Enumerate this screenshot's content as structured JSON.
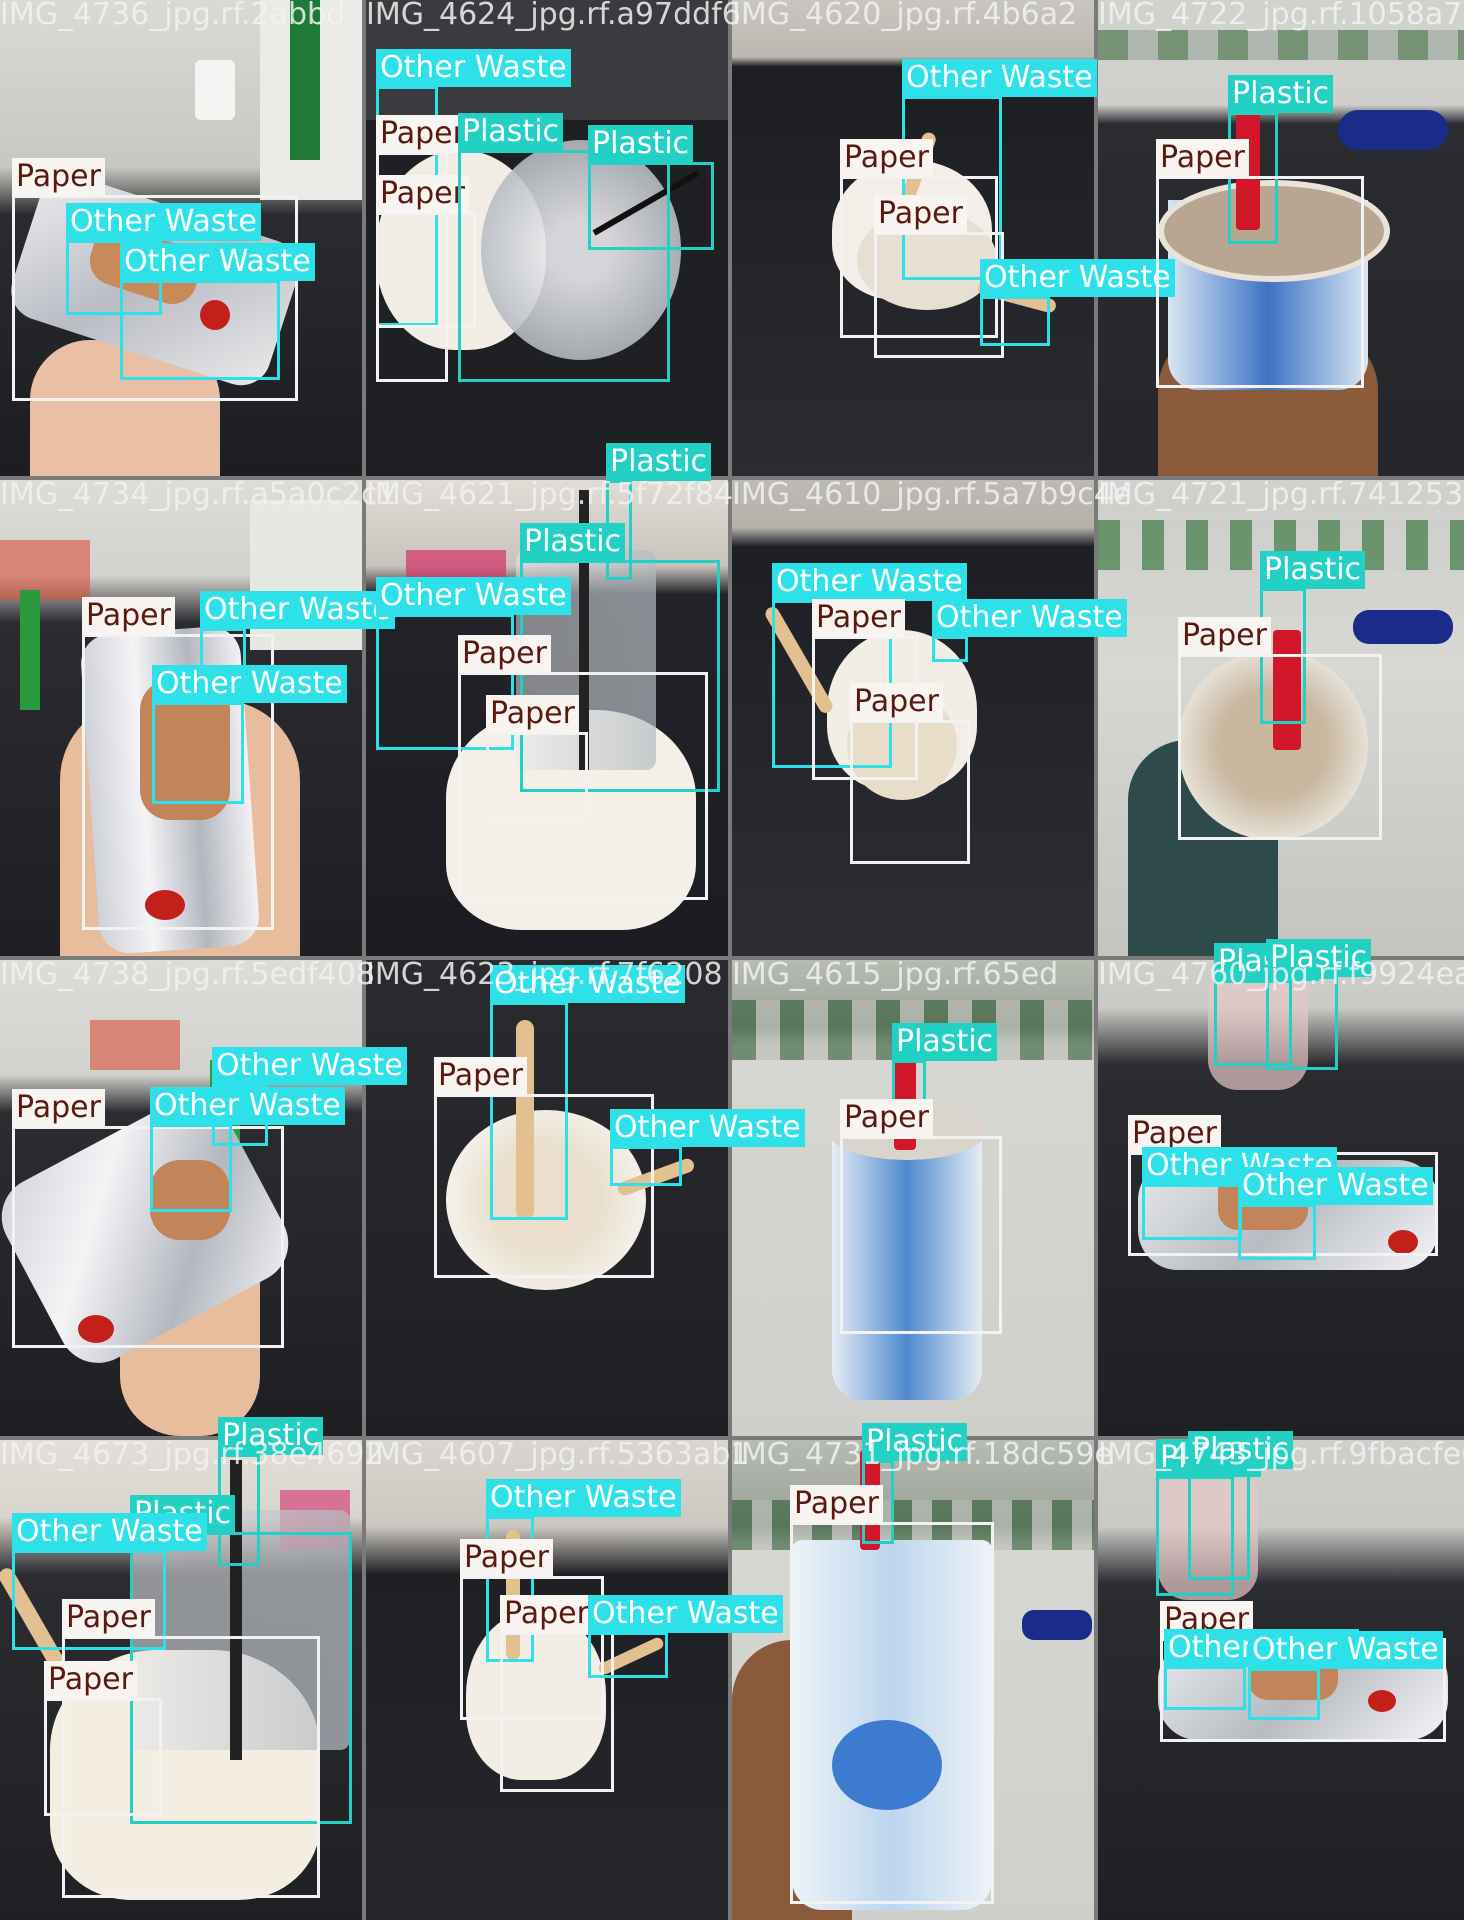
{
  "labels": {
    "paper": "Paper",
    "other": "Other Waste",
    "plastic": "Plastic"
  },
  "colors": {
    "paper": "#f2f2f2",
    "other": "#2ee0e8",
    "plastic": "#22d1c4"
  },
  "tiles": [
    {
      "fname": "IMG_4736_jpg.rf.2abbd"
    },
    {
      "fname": "IMG_4624_jpg.rf.a97ddf6"
    },
    {
      "fname": "IMG_4620_jpg.rf.4b6a2"
    },
    {
      "fname": "IMG_4722_jpg.rf.1058a74"
    },
    {
      "fname": "IMG_4734_jpg.rf.a5a0c2c1"
    },
    {
      "fname": "IMG_4621_jpg.rf.5f72f84"
    },
    {
      "fname": "IMG_4610_jpg.rf.5a7b9c4e"
    },
    {
      "fname": "IMG_4721_jpg.rf.7412535ad"
    },
    {
      "fname": "IMG_4738_jpg.rf.5edf408"
    },
    {
      "fname": "IMG_4623_jpg.rf.7f6208"
    },
    {
      "fname": "IMG_4615_jpg.rf.65ed"
    },
    {
      "fname": "IMG_4760_jpg.rf.f9924ead"
    },
    {
      "fname": "IMG_4673_jpg.rf.38e4692"
    },
    {
      "fname": "IMG_4607_jpg.rf.5363ab1"
    },
    {
      "fname": "IMG_4731_jpg.rf.18dc59e"
    },
    {
      "fname": "IMG_4743_jpg.rf.9fbacfe6"
    }
  ]
}
